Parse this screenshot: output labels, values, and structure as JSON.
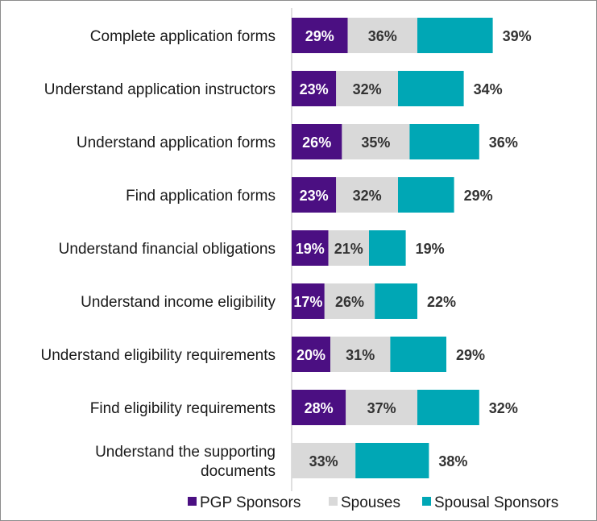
{
  "chart_data": {
    "type": "bar",
    "orientation": "horizontal",
    "stacked": true,
    "categories": [
      [
        "Complete application forms"
      ],
      [
        "Understand application instructors"
      ],
      [
        "Understand application forms"
      ],
      [
        "Find application forms"
      ],
      [
        "Understand financial obligations"
      ],
      [
        "Understand income eligibility"
      ],
      [
        "Understand eligibility requirements"
      ],
      [
        "Find eligibility requirements"
      ],
      [
        "Understand the supporting",
        "documents"
      ]
    ],
    "series": [
      {
        "name": "PGP Sponsors",
        "color": "#4b0f82",
        "label_color": "#ffffff",
        "values": [
          29,
          23,
          26,
          23,
          19,
          17,
          20,
          28,
          null
        ],
        "labels": [
          "29%",
          "23%",
          "26%",
          "23%",
          "19%",
          "17%",
          "20%",
          "28%",
          null
        ]
      },
      {
        "name": "Spouses",
        "color": "#d9d9d9",
        "label_color": "#333333",
        "values": [
          36,
          32,
          35,
          32,
          21,
          26,
          31,
          37,
          33
        ],
        "labels": [
          "36%",
          "32%",
          "35%",
          "32%",
          "21%",
          "26%",
          "31%",
          "37%",
          "33%"
        ]
      },
      {
        "name": "Spousal Sponsors",
        "color": "#00a7b5",
        "label_color": "#333333",
        "values": [
          39,
          34,
          36,
          29,
          19,
          22,
          29,
          32,
          38
        ],
        "labels": [
          "39%",
          "34%",
          "36%",
          "29%",
          "19%",
          "22%",
          "29%",
          "32%",
          "38%"
        ]
      }
    ],
    "legend": {
      "position": "bottom-right"
    },
    "grid": false
  }
}
